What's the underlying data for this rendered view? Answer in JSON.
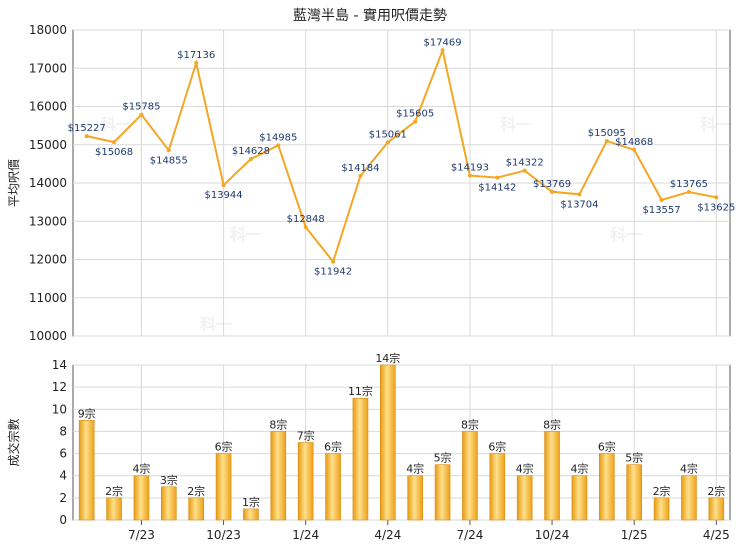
{
  "title": "藍灣半島 - 實用呎價走勢",
  "colors": {
    "line": "#f5a623",
    "bar_light": "#fbd36a",
    "bar_dark": "#f0a21a",
    "grid": "#d9d9d9",
    "axis": "#555555"
  },
  "watermark": "科一",
  "chart_data": [
    {
      "type": "line",
      "ylabel": "平均呎價",
      "ylim": [
        10000,
        18000
      ],
      "yticks": [
        10000,
        11000,
        12000,
        13000,
        14000,
        15000,
        16000,
        17000,
        18000
      ],
      "grid": true,
      "values": [
        15227,
        15068,
        15785,
        14855,
        17136,
        13944,
        14628,
        14985,
        12848,
        11942,
        14184,
        15061,
        15605,
        17469,
        14193,
        14142,
        14322,
        13769,
        13704,
        15095,
        14868,
        13557,
        13765,
        13625
      ],
      "data_labels": [
        "$15227",
        "$15068",
        "$15785",
        "$14855",
        "$17136",
        "$13944",
        "$14628",
        "$14985",
        "$12848",
        "$11942",
        "$14184",
        "$15061",
        "$15605",
        "$17469",
        "$14193",
        "$14142",
        "$14322",
        "$13769",
        "$13704",
        "$15095",
        "$14868",
        "$13557",
        "$13765",
        "$13625"
      ]
    },
    {
      "type": "bar",
      "ylabel": "成交宗數",
      "ylim": [
        0,
        14
      ],
      "yticks": [
        0,
        2,
        4,
        6,
        8,
        10,
        12,
        14
      ],
      "grid": true,
      "values": [
        9,
        2,
        4,
        3,
        2,
        6,
        1,
        8,
        7,
        6,
        11,
        14,
        4,
        5,
        8,
        6,
        4,
        8,
        4,
        6,
        5,
        2,
        4,
        2
      ],
      "data_labels": [
        "9宗",
        "2宗",
        "4宗",
        "3宗",
        "2宗",
        "6宗",
        "1宗",
        "8宗",
        "7宗",
        "6宗",
        "11宗",
        "14宗",
        "4宗",
        "5宗",
        "8宗",
        "6宗",
        "4宗",
        "8宗",
        "4宗",
        "6宗",
        "5宗",
        "2宗",
        "4宗",
        "2宗"
      ],
      "xtick_labels": [
        "7/23",
        "10/23",
        "1/24",
        "4/24",
        "7/24",
        "10/24",
        "1/25",
        "4/25"
      ]
    }
  ]
}
